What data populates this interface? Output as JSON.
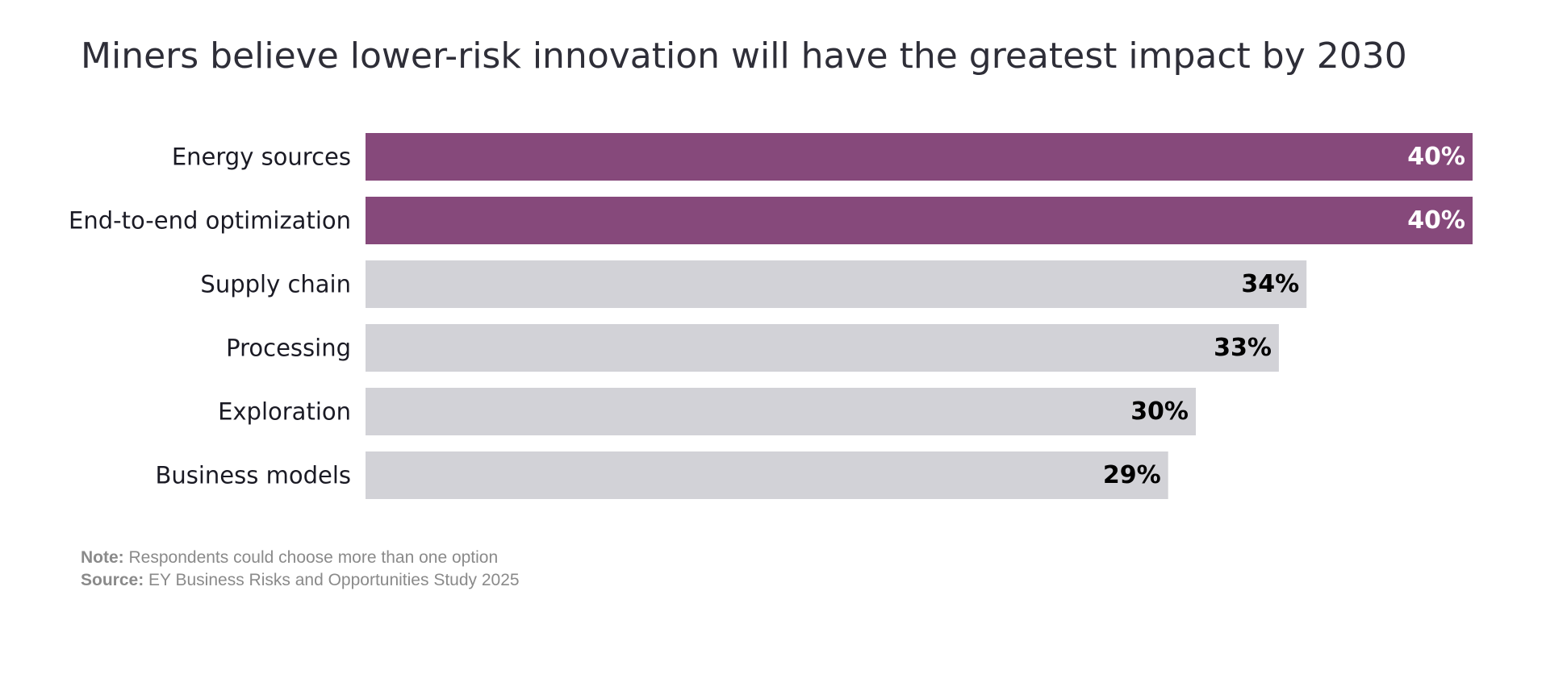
{
  "chart_data": {
    "type": "bar",
    "orientation": "horizontal",
    "title": "Miners believe lower-risk innovation will have the greatest impact by 2030",
    "categories": [
      "Energy sources",
      "End-to-end optimization",
      "Supply chain",
      "Processing",
      "Exploration",
      "Business models"
    ],
    "values": [
      40,
      40,
      34,
      33,
      30,
      29
    ],
    "value_labels": [
      "40%",
      "40%",
      "34%",
      "33%",
      "30%",
      "29%"
    ],
    "highlight_color": "#86497b",
    "base_color": "#d2d2d7",
    "highlight_text_color": "#ffffff",
    "base_text_color": "#000000",
    "highlighted": [
      true,
      true,
      false,
      false,
      false,
      false
    ],
    "xlim": [
      0,
      40
    ]
  },
  "footnotes": {
    "note_label": "Note:",
    "note_text": "Respondents could choose more than one option",
    "source_label": "Source:",
    "source_text": "EY Business Risks and Opportunities Study 2025"
  }
}
